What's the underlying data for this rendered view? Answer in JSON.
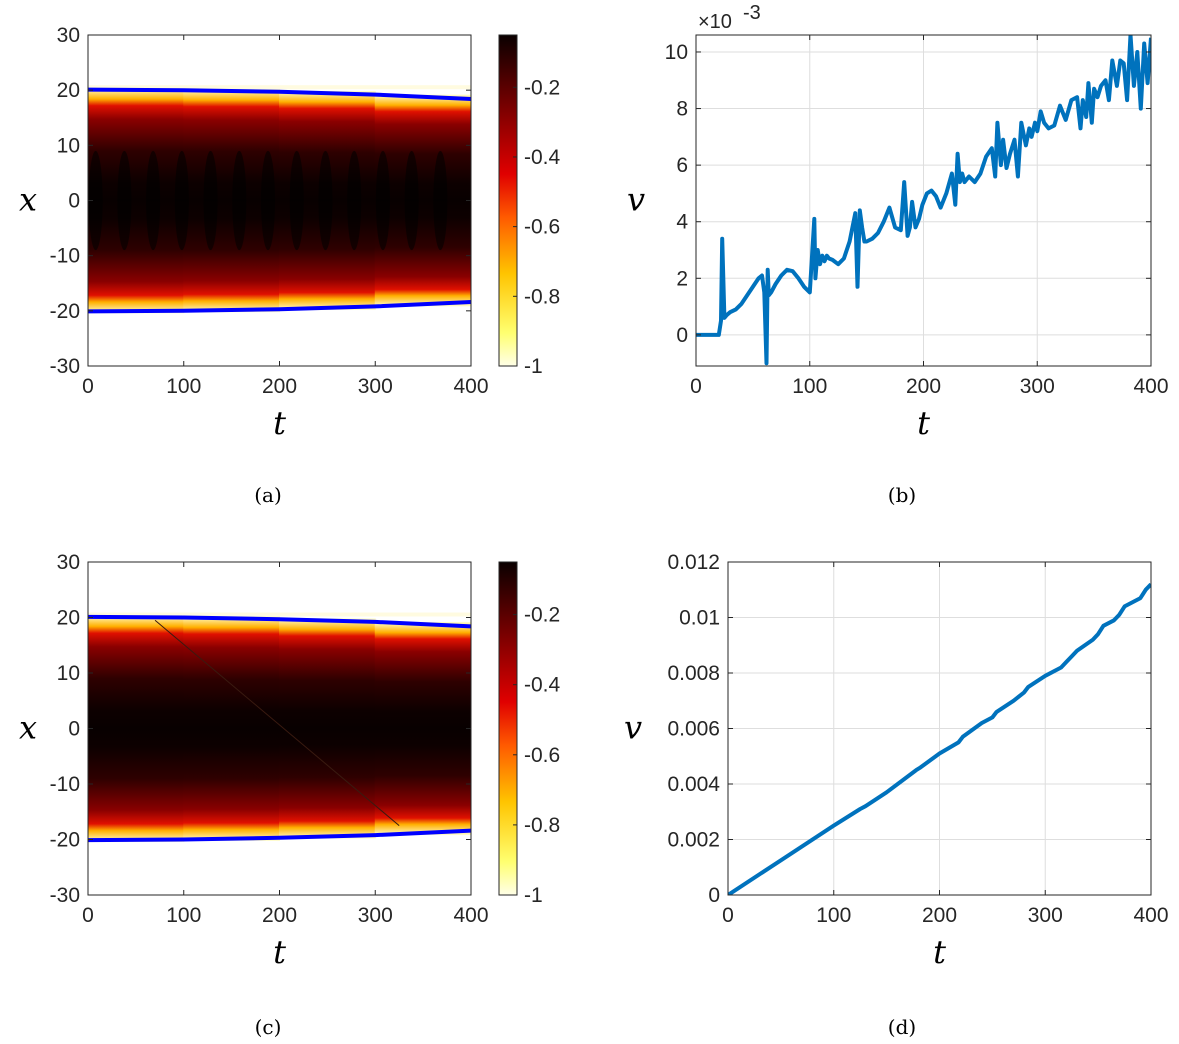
{
  "chart_data": [
    {
      "id": "a",
      "type": "heatmap",
      "caption": "(a)",
      "xlabel": "t",
      "ylabel": "x",
      "xlim": [
        0,
        400
      ],
      "ylim": [
        -30,
        30
      ],
      "xticks": [
        "0",
        "100",
        "200",
        "300",
        "400"
      ],
      "yticks": [
        "-30",
        "-20",
        "-10",
        "0",
        "10",
        "20",
        "30"
      ],
      "colorbar": {
        "range": [
          -1,
          -0.05
        ],
        "ticks": [
          "-0.2",
          "-0.4",
          "-0.6",
          "-0.8",
          "-1"
        ],
        "colormap": "hot"
      },
      "boundary_color": "#0000ff",
      "boundary_upper": {
        "t": [
          0,
          100,
          200,
          300,
          400
        ],
        "x": [
          20.1,
          20.0,
          19.7,
          19.2,
          18.4
        ]
      },
      "boundary_lower": {
        "t": [
          0,
          100,
          200,
          300,
          400
        ],
        "x": [
          -20.1,
          -20.0,
          -19.7,
          -19.2,
          -18.4
        ]
      },
      "grid": false
    },
    {
      "id": "b",
      "type": "line",
      "caption": "(b)",
      "xlabel": "t",
      "ylabel": "v",
      "exponent": "×10",
      "exponent_power": "-3",
      "xlim": [
        0,
        400
      ],
      "ylim": [
        -1.1,
        10.6
      ],
      "xticks": [
        "0",
        "100",
        "200",
        "300",
        "400"
      ],
      "yticks": [
        "0",
        "2",
        "4",
        "6",
        "8",
        "10"
      ],
      "grid": true,
      "series": [
        {
          "color": "#0072bd",
          "x": [
            0,
            20,
            22,
            23,
            25,
            27,
            30,
            35,
            40,
            45,
            50,
            55,
            58,
            60,
            62,
            63,
            64,
            66,
            70,
            75,
            80,
            85,
            90,
            95,
            100,
            104,
            105,
            107,
            109,
            111,
            113,
            115,
            117,
            120,
            125,
            130,
            135,
            140,
            142,
            144,
            146,
            148,
            150,
            155,
            160,
            165,
            170,
            175,
            180,
            183,
            186,
            188,
            190,
            193,
            196,
            199,
            203,
            207,
            211,
            215,
            220,
            225,
            228,
            230,
            232,
            234,
            236,
            240,
            245,
            250,
            255,
            260,
            263,
            265,
            268,
            270,
            273,
            276,
            280,
            283,
            286,
            290,
            293,
            295,
            298,
            300,
            303,
            306,
            310,
            315,
            320,
            325,
            330,
            335,
            338,
            340,
            343,
            345,
            348,
            350,
            353,
            356,
            360,
            363,
            366,
            370,
            373,
            376,
            379,
            382,
            385,
            388,
            391,
            394,
            397,
            400
          ],
          "y": [
            0,
            0,
            0.5,
            3.4,
            0.6,
            0.7,
            0.8,
            0.9,
            1.1,
            1.4,
            1.7,
            2.0,
            2.1,
            1.5,
            -1.0,
            2.3,
            1.4,
            1.5,
            1.8,
            2.1,
            2.3,
            2.25,
            2.0,
            1.7,
            1.5,
            4.1,
            2.0,
            3.0,
            2.5,
            2.8,
            2.6,
            2.8,
            2.7,
            2.65,
            2.5,
            2.7,
            3.3,
            4.3,
            1.7,
            4.4,
            3.8,
            3.3,
            3.3,
            3.4,
            3.6,
            4.0,
            4.5,
            3.8,
            3.7,
            5.4,
            3.5,
            3.8,
            4.7,
            3.8,
            4.1,
            4.6,
            5.0,
            5.1,
            4.9,
            4.5,
            5.0,
            5.7,
            4.6,
            6.4,
            5.4,
            5.7,
            5.4,
            5.6,
            5.4,
            5.7,
            6.3,
            6.6,
            5.6,
            7.5,
            6.0,
            6.9,
            5.9,
            6.4,
            6.9,
            5.6,
            7.5,
            6.7,
            7.3,
            7.0,
            7.5,
            7.2,
            7.9,
            7.5,
            7.3,
            7.4,
            8.1,
            7.6,
            8.3,
            8.4,
            7.3,
            8.3,
            7.7,
            8.9,
            7.5,
            8.7,
            8.4,
            8.8,
            9.0,
            8.3,
            9.7,
            8.8,
            9.7,
            9.6,
            8.3,
            10.6,
            8.8,
            10.0,
            8.0,
            10.3,
            8.9,
            10.5
          ]
        }
      ]
    },
    {
      "id": "c",
      "type": "heatmap",
      "caption": "(c)",
      "xlabel": "t",
      "ylabel": "x",
      "xlim": [
        0,
        400
      ],
      "ylim": [
        -30,
        30
      ],
      "xticks": [
        "0",
        "100",
        "200",
        "300",
        "400"
      ],
      "yticks": [
        "-30",
        "-20",
        "-10",
        "0",
        "10",
        "20",
        "30"
      ],
      "colorbar": {
        "range": [
          -1,
          -0.05
        ],
        "ticks": [
          "-0.2",
          "-0.4",
          "-0.6",
          "-0.8",
          "-1"
        ],
        "colormap": "hot"
      },
      "boundary_color": "#0000ff",
      "boundary_upper": {
        "t": [
          0,
          100,
          200,
          300,
          400
        ],
        "x": [
          20.1,
          20.0,
          19.7,
          19.2,
          18.4
        ]
      },
      "boundary_lower": {
        "t": [
          0,
          100,
          200,
          300,
          400
        ],
        "x": [
          -20.1,
          -20.0,
          -19.7,
          -19.2,
          -18.4
        ]
      },
      "grid": false
    },
    {
      "id": "d",
      "type": "line",
      "caption": "(d)",
      "xlabel": "t",
      "ylabel": "v",
      "xlim": [
        0,
        400
      ],
      "ylim": [
        0,
        0.012
      ],
      "xticks": [
        "0",
        "100",
        "200",
        "300",
        "400"
      ],
      "yticks": [
        "0",
        "0.002",
        "0.004",
        "0.006",
        "0.008",
        "0.01",
        "0.012"
      ],
      "grid": true,
      "series": [
        {
          "color": "#0072bd",
          "x": [
            0,
            50,
            100,
            125,
            130,
            150,
            178,
            182,
            200,
            218,
            222,
            240,
            250,
            254,
            270,
            280,
            284,
            300,
            315,
            320,
            325,
            330,
            345,
            350,
            355,
            365,
            370,
            375,
            390,
            395,
            400
          ],
          "y": [
            0,
            0.00125,
            0.0025,
            0.0031,
            0.0032,
            0.0037,
            0.0045,
            0.0046,
            0.0051,
            0.0055,
            0.0057,
            0.0062,
            0.0064,
            0.0066,
            0.007,
            0.0073,
            0.0075,
            0.0079,
            0.0082,
            0.0084,
            0.0086,
            0.0088,
            0.0092,
            0.0094,
            0.0097,
            0.0099,
            0.0101,
            0.0104,
            0.0107,
            0.011,
            0.0112
          ]
        }
      ]
    }
  ]
}
